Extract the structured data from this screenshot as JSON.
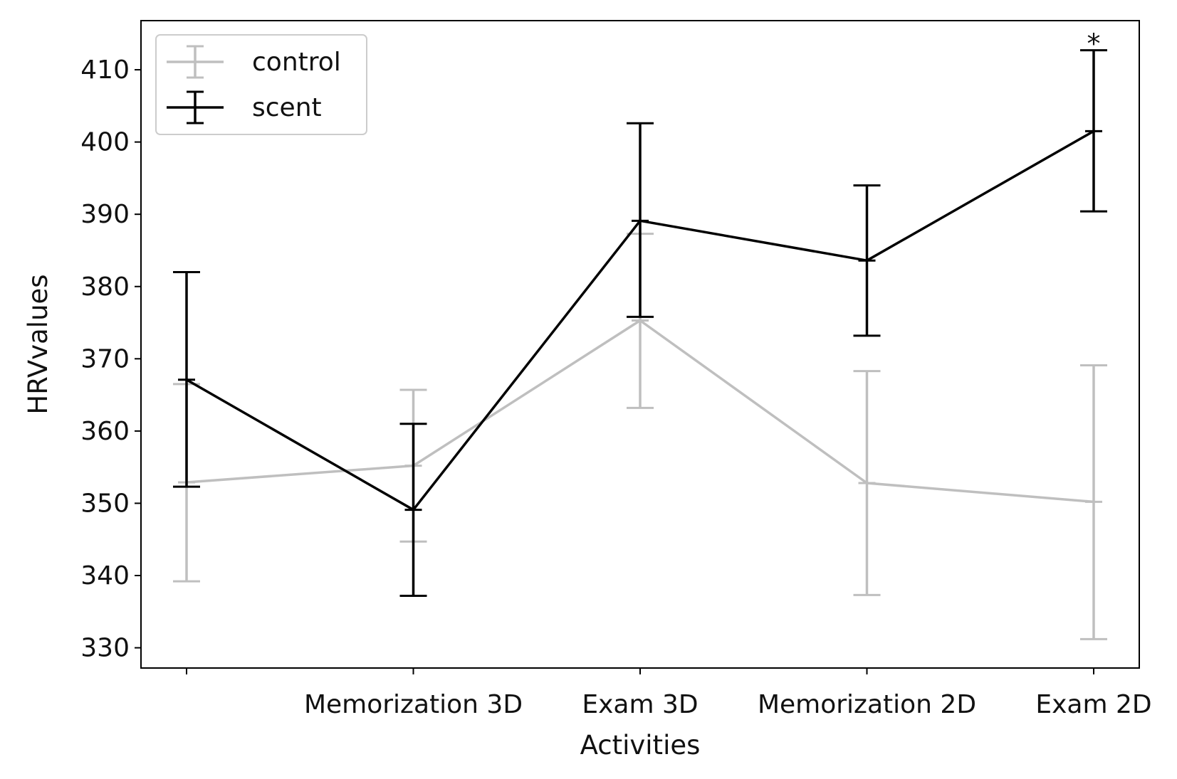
{
  "chart_data": {
    "type": "line",
    "xlabel": "Activities",
    "ylabel": "HRVvalues",
    "categories": [
      "",
      "Memorization 3D",
      "Exam 3D",
      "Memorization 2D",
      "Exam 2D"
    ],
    "ylim": [
      327.2,
      416.8
    ],
    "yticks": [
      330,
      340,
      350,
      360,
      370,
      380,
      390,
      400,
      410
    ],
    "grid": false,
    "legend_position": "upper-left",
    "series": [
      {
        "name": "control",
        "color": "#bfbfbf",
        "values": [
          352.9,
          355.2,
          375.3,
          352.8,
          350.2
        ],
        "error_low": [
          339.2,
          344.7,
          363.2,
          337.3,
          331.2
        ],
        "error_high": [
          366.5,
          365.7,
          387.3,
          368.3,
          369.1
        ]
      },
      {
        "name": "scent",
        "color": "#000000",
        "values": [
          367.1,
          349.1,
          389.1,
          383.6,
          401.5
        ],
        "error_low": [
          352.3,
          337.2,
          375.8,
          373.2,
          390.4
        ],
        "error_high": [
          382.0,
          361.0,
          402.6,
          394.0,
          412.7
        ]
      }
    ],
    "annotations": [
      {
        "text": "*",
        "category_index": 4,
        "y": 412.7
      }
    ]
  }
}
